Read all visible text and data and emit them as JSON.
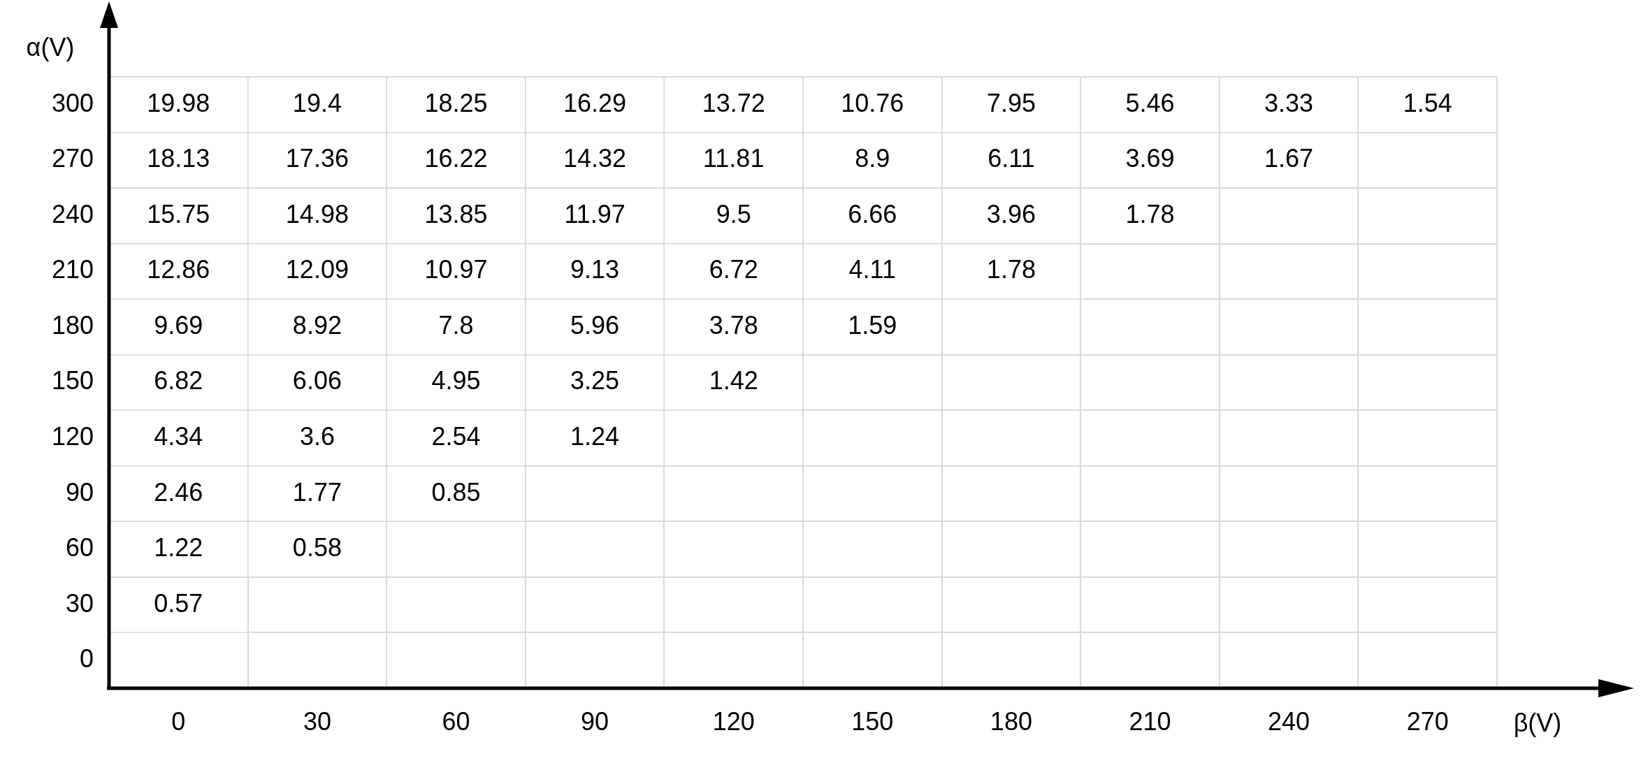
{
  "chart_data": {
    "type": "heatmap",
    "xlabel": "β(V)",
    "ylabel": "α(V)",
    "categories": [
      "0",
      "30",
      "60",
      "90",
      "120",
      "150",
      "180",
      "210",
      "240",
      "270"
    ],
    "y_categories": [
      "300",
      "270",
      "240",
      "210",
      "180",
      "150",
      "120",
      "90",
      "60",
      "30",
      "0"
    ],
    "cells": [
      [
        19.98,
        19.4,
        18.25,
        16.29,
        13.72,
        10.76,
        7.95,
        5.46,
        3.33,
        1.54
      ],
      [
        18.13,
        17.36,
        16.22,
        14.32,
        11.81,
        8.9,
        6.11,
        3.69,
        1.67,
        null
      ],
      [
        15.75,
        14.98,
        13.85,
        11.97,
        9.5,
        6.66,
        3.96,
        1.78,
        null,
        null
      ],
      [
        12.86,
        12.09,
        10.97,
        9.13,
        6.72,
        4.11,
        1.78,
        null,
        null,
        null
      ],
      [
        9.69,
        8.92,
        7.8,
        5.96,
        3.78,
        1.59,
        null,
        null,
        null,
        null
      ],
      [
        6.82,
        6.06,
        4.95,
        3.25,
        1.42,
        null,
        null,
        null,
        null,
        null
      ],
      [
        4.34,
        3.6,
        2.54,
        1.24,
        null,
        null,
        null,
        null,
        null,
        null
      ],
      [
        2.46,
        1.77,
        0.85,
        null,
        null,
        null,
        null,
        null,
        null,
        null
      ],
      [
        1.22,
        0.58,
        null,
        null,
        null,
        null,
        null,
        null,
        null,
        null
      ],
      [
        0.57,
        null,
        null,
        null,
        null,
        null,
        null,
        null,
        null,
        null
      ],
      [
        null,
        null,
        null,
        null,
        null,
        null,
        null,
        null,
        null,
        null
      ]
    ],
    "grid": true,
    "data_labels": true
  }
}
